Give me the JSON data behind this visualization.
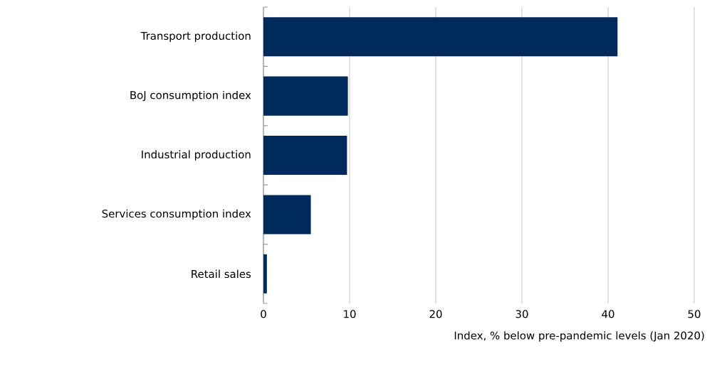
{
  "chart_data": {
    "type": "bar",
    "orientation": "horizontal",
    "categories": [
      "Transport production",
      "BoJ consumption index",
      "Industrial production",
      "Services consumption index",
      "Retail sales"
    ],
    "values": [
      41.1,
      9.8,
      9.7,
      5.5,
      0.4
    ],
    "color": "#002a5c",
    "xlabel": "Index, % below pre-pandemic levels (Jan 2020)",
    "xlim": [
      0,
      50
    ],
    "xticks": [
      0,
      10,
      20,
      30,
      40,
      50
    ],
    "grid": "x"
  }
}
